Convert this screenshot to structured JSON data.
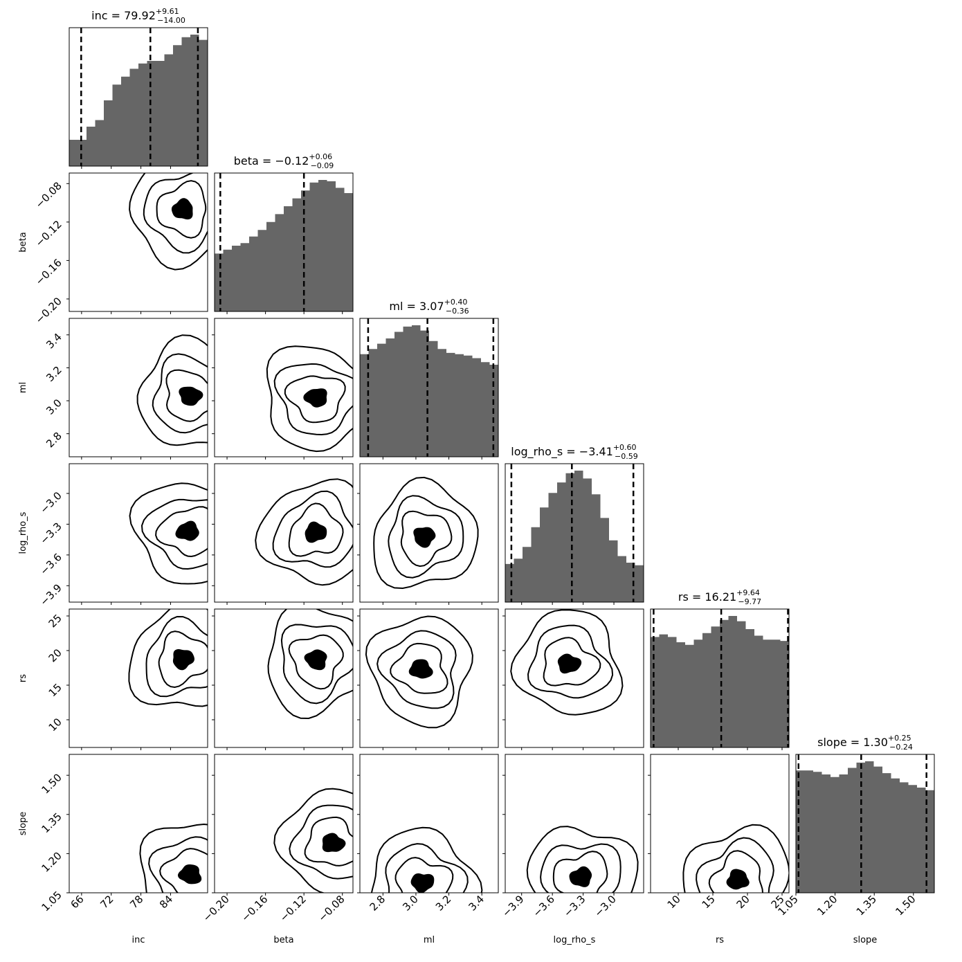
{
  "chart_data": {
    "type": "corner",
    "parameters": [
      {
        "name": "inc",
        "label": "inc",
        "median": "79.92",
        "plus": "+9.61",
        "minus": "−14.00",
        "range": [
          63.5,
          91.5
        ],
        "ticks": [
          66,
          72,
          78,
          84
        ],
        "tick_labels": [
          "66",
          "72",
          "78",
          "84"
        ],
        "quantiles": [
          65.92,
          79.92,
          89.53
        ]
      },
      {
        "name": "beta",
        "label": "beta",
        "median": "−0.12",
        "plus": "+0.06",
        "minus": "−0.09",
        "range": [
          -0.213,
          -0.069
        ],
        "ticks": [
          -0.2,
          -0.16,
          -0.12,
          -0.08
        ],
        "tick_labels": [
          "−0.20",
          "−0.16",
          "−0.12",
          "−0.08"
        ],
        "quantiles": [
          -0.207,
          -0.12,
          -0.06
        ]
      },
      {
        "name": "ml",
        "label": "ml",
        "median": "3.07",
        "plus": "+0.40",
        "minus": "−0.36",
        "range": [
          2.66,
          3.5
        ],
        "ticks": [
          2.8,
          3.0,
          3.2,
          3.4
        ],
        "tick_labels": [
          "2.8",
          "3.0",
          "3.2",
          "3.4"
        ],
        "quantiles": [
          2.71,
          3.07,
          3.47
        ]
      },
      {
        "name": "log_rho_s",
        "label": "log_rho_s",
        "median": "−3.41",
        "plus": "+0.60",
        "minus": "−0.59",
        "range": [
          -4.06,
          -2.71
        ],
        "ticks": [
          -3.9,
          -3.6,
          -3.3,
          -3.0
        ],
        "tick_labels": [
          "−3.9",
          "−3.6",
          "−3.3",
          "−3.0"
        ],
        "quantiles": [
          -4.0,
          -3.41,
          -2.81
        ]
      },
      {
        "name": "rs",
        "label": "rs",
        "median": "16.21",
        "plus": "+9.64",
        "minus": "−9.77",
        "range": [
          6.0,
          26.0
        ],
        "ticks": [
          10,
          15,
          20,
          25
        ],
        "tick_labels": [
          "10",
          "15",
          "20",
          "25"
        ],
        "quantiles": [
          6.44,
          16.21,
          25.85
        ]
      },
      {
        "name": "slope",
        "label": "slope",
        "median": "1.30",
        "plus": "+0.25",
        "minus": "−0.24",
        "range": [
          1.05,
          1.58
        ],
        "ticks": [
          1.05,
          1.2,
          1.35,
          1.5
        ],
        "tick_labels": [
          "1.05",
          "1.20",
          "1.35",
          "1.50"
        ],
        "quantiles": [
          1.06,
          1.3,
          1.55
        ]
      }
    ],
    "histograms": [
      [
        0.2,
        0.2,
        0.3,
        0.35,
        0.5,
        0.62,
        0.68,
        0.74,
        0.78,
        0.8,
        0.8,
        0.85,
        0.92,
        0.98,
        1.0,
        0.96
      ],
      [
        0.44,
        0.47,
        0.5,
        0.52,
        0.57,
        0.62,
        0.68,
        0.74,
        0.8,
        0.86,
        0.92,
        0.98,
        1.0,
        0.99,
        0.94,
        0.9
      ],
      [
        0.78,
        0.82,
        0.86,
        0.9,
        0.95,
        0.99,
        1.0,
        0.96,
        0.88,
        0.82,
        0.79,
        0.78,
        0.77,
        0.75,
        0.72,
        0.7
      ],
      [
        0.29,
        0.33,
        0.42,
        0.57,
        0.72,
        0.83,
        0.91,
        0.98,
        1.0,
        0.94,
        0.82,
        0.64,
        0.47,
        0.35,
        0.3,
        0.28
      ],
      [
        0.84,
        0.86,
        0.84,
        0.8,
        0.78,
        0.82,
        0.87,
        0.92,
        0.97,
        1.0,
        0.96,
        0.9,
        0.85,
        0.82,
        0.82,
        0.81
      ],
      [
        0.93,
        0.93,
        0.92,
        0.9,
        0.88,
        0.9,
        0.95,
        0.99,
        1.0,
        0.96,
        0.91,
        0.87,
        0.84,
        0.82,
        0.8,
        0.78
      ]
    ],
    "contour_cores": [
      {
        "row": 1,
        "col": 0,
        "x": 86.5,
        "y": -0.107
      },
      {
        "row": 2,
        "col": 0,
        "x": 88.0,
        "y": 3.03
      },
      {
        "row": 2,
        "col": 1,
        "x": -0.107,
        "y": 3.02
      },
      {
        "row": 3,
        "col": 0,
        "x": 87.5,
        "y": -3.37
      },
      {
        "row": 3,
        "col": 1,
        "x": -0.108,
        "y": -3.38
      },
      {
        "row": 3,
        "col": 2,
        "x": 3.05,
        "y": -3.42
      },
      {
        "row": 4,
        "col": 0,
        "x": 86.5,
        "y": 18.8
      },
      {
        "row": 4,
        "col": 1,
        "x": -0.107,
        "y": 18.7
      },
      {
        "row": 4,
        "col": 2,
        "x": 3.03,
        "y": 17.3
      },
      {
        "row": 4,
        "col": 3,
        "x": -3.44,
        "y": 18.1
      },
      {
        "row": 5,
        "col": 0,
        "x": 88.0,
        "y": 1.12
      },
      {
        "row": 5,
        "col": 1,
        "x": -0.09,
        "y": 1.24
      },
      {
        "row": 5,
        "col": 2,
        "x": 3.04,
        "y": 1.09
      },
      {
        "row": 5,
        "col": 3,
        "x": -3.32,
        "y": 1.11
      },
      {
        "row": 5,
        "col": 4,
        "x": 18.6,
        "y": 1.1
      }
    ]
  }
}
